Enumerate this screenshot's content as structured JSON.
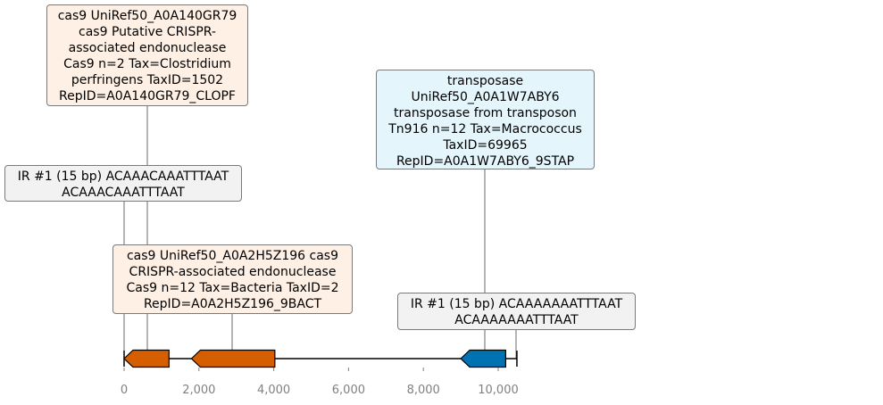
{
  "colors": {
    "orange_feature": "#d55e00",
    "blue_feature": "#0072b2",
    "gene_box_fill": "#fef0e4",
    "blue_box_fill": "#e4f5fc",
    "ir_box_fill": "#f2f2f2",
    "axis_text": "#808080"
  },
  "sequence": {
    "start": 0,
    "end": 10500
  },
  "axis": {
    "ticks": [
      0,
      2000,
      4000,
      6000,
      8000,
      10000
    ],
    "tick_labels": [
      "0",
      "2,000",
      "4,000",
      "6,000",
      "8,000",
      "10,000"
    ]
  },
  "features": [
    {
      "id": "cas9_small",
      "start": 0,
      "end": 1200,
      "strand": -1,
      "color": "#d55e00"
    },
    {
      "id": "cas9_large",
      "start": 1800,
      "end": 4030,
      "strand": -1,
      "color": "#d55e00"
    },
    {
      "id": "transposase",
      "start": 9000,
      "end": 10200,
      "strand": -1,
      "color": "#0072b2"
    }
  ],
  "annotations": {
    "cas9_top": "cas9 UniRef50_A0A140GR79\ncas9 Putative CRISPR-\nassociated endonuclease\nCas9 n=2 Tax=Clostridium\nperfringens TaxID=1502\nRepID=A0A140GR79_CLOPF",
    "ir_left": "IR #1 (15 bp) ACAAACAAATTTAAT\nACAAACAAATTTAAT",
    "cas9_mid": "cas9 UniRef50_A0A2H5Z196 cas9\nCRISPR-associated endonuclease\nCas9 n=12 Tax=Bacteria TaxID=2\nRepID=A0A2H5Z196_9BACT",
    "transposase": "transposase\nUniRef50_A0A1W7ABY6\ntransposase from transposon\nTn916 n=12 Tax=Macrococcus\nTaxID=69965\nRepID=A0A1W7ABY6_9STAP",
    "ir_right": "IR #1 (15 bp) ACAAAAAAATTTAAT\nACAAAAAAATTTAAT"
  }
}
